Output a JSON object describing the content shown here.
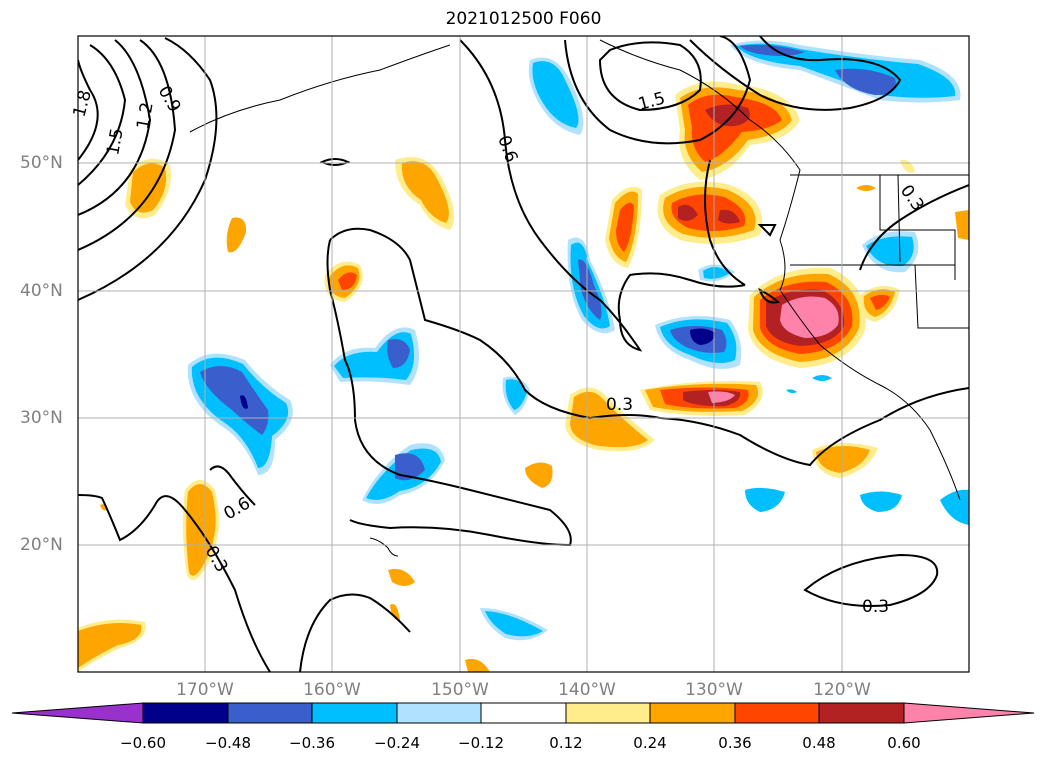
{
  "title": "2021012500 F060",
  "latitude_labels": [
    "50°N",
    "40°N",
    "30°N",
    "20°N"
  ],
  "longitude_labels": [
    "170°W",
    "160°W",
    "150°W",
    "140°W",
    "130°W",
    "120°W"
  ],
  "colorbar": {
    "tick_labels": [
      "−0.60",
      "−0.48",
      "−0.36",
      "−0.24",
      "−0.12",
      "0.12",
      "0.24",
      "0.36",
      "0.48",
      "0.60"
    ],
    "colors": [
      "#9932cc",
      "#00008b",
      "#3a5fcd",
      "#00bfff",
      "#b0e2ff",
      "#ffffff",
      "#ffec8b",
      "#ffa500",
      "#ff4500",
      "#b22222",
      "#ff82ab"
    ]
  },
  "contour_labels": [
    "1.8",
    "1.5",
    "1.2",
    "0.9",
    "0.6",
    "0.6",
    "0.3",
    "0.3",
    "0.3",
    "0.3",
    "1.5"
  ],
  "colors": {
    "contour": "#000000",
    "grid": "#b0b0b0",
    "coast": "#000000"
  }
}
